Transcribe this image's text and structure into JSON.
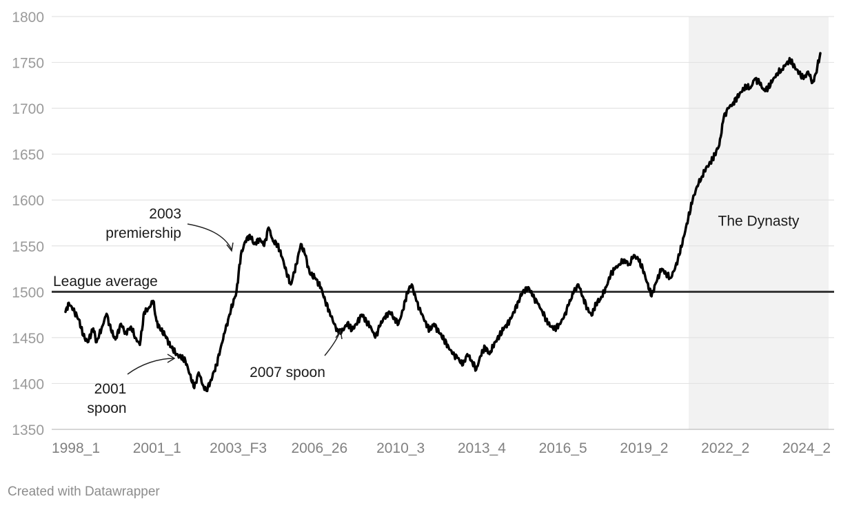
{
  "chart_data": {
    "type": "line",
    "ylim": [
      1350,
      1800
    ],
    "yticks": [
      1350,
      1400,
      1450,
      1500,
      1550,
      1600,
      1650,
      1700,
      1750,
      1800
    ],
    "xticks": [
      "1998_1",
      "2001_1",
      "2003_F3",
      "2006_26",
      "2010_3",
      "2013_4",
      "2016_5",
      "2019_2",
      "2022_2",
      "2024_2"
    ],
    "grid": true,
    "reference_line": {
      "value": 1500,
      "label": "League average"
    },
    "shaded_region": {
      "label": "The Dynasty",
      "from_index": 743,
      "to_index": 900
    },
    "annotations": [
      {
        "lines": [
          "2003",
          "premiership"
        ]
      },
      {
        "lines": [
          "2001",
          "spoon"
        ]
      },
      {
        "lines": [
          "2007 spoon"
        ]
      }
    ],
    "anchors": [
      [
        0,
        1478
      ],
      [
        3,
        1488
      ],
      [
        7,
        1480
      ],
      [
        12,
        1470
      ],
      [
        16,
        1452
      ],
      [
        20,
        1445
      ],
      [
        25,
        1460
      ],
      [
        28,
        1445
      ],
      [
        33,
        1462
      ],
      [
        37,
        1476
      ],
      [
        41,
        1458
      ],
      [
        45,
        1448
      ],
      [
        50,
        1465
      ],
      [
        54,
        1455
      ],
      [
        59,
        1462
      ],
      [
        63,
        1450
      ],
      [
        67,
        1442
      ],
      [
        71,
        1478
      ],
      [
        75,
        1482
      ],
      [
        79,
        1490
      ],
      [
        82,
        1468
      ],
      [
        85,
        1460
      ],
      [
        90,
        1452
      ],
      [
        95,
        1440
      ],
      [
        100,
        1432
      ],
      [
        104,
        1428
      ],
      [
        108,
        1425
      ],
      [
        112,
        1410
      ],
      [
        116,
        1395
      ],
      [
        120,
        1412
      ],
      [
        124,
        1398
      ],
      [
        127,
        1392
      ],
      [
        131,
        1404
      ],
      [
        136,
        1420
      ],
      [
        140,
        1440
      ],
      [
        144,
        1458
      ],
      [
        149,
        1480
      ],
      [
        154,
        1500
      ],
      [
        158,
        1540
      ],
      [
        162,
        1555
      ],
      [
        166,
        1562
      ],
      [
        170,
        1552
      ],
      [
        175,
        1558
      ],
      [
        179,
        1550
      ],
      [
        183,
        1570
      ],
      [
        187,
        1555
      ],
      [
        191,
        1552
      ],
      [
        195,
        1538
      ],
      [
        199,
        1522
      ],
      [
        203,
        1508
      ],
      [
        208,
        1530
      ],
      [
        212,
        1552
      ],
      [
        216,
        1540
      ],
      [
        220,
        1520
      ],
      [
        225,
        1515
      ],
      [
        230,
        1505
      ],
      [
        234,
        1490
      ],
      [
        238,
        1478
      ],
      [
        242,
        1465
      ],
      [
        246,
        1455
      ],
      [
        250,
        1458
      ],
      [
        254,
        1466
      ],
      [
        258,
        1458
      ],
      [
        262,
        1465
      ],
      [
        267,
        1475
      ],
      [
        271,
        1468
      ],
      [
        275,
        1462
      ],
      [
        279,
        1450
      ],
      [
        283,
        1462
      ],
      [
        287,
        1472
      ],
      [
        292,
        1478
      ],
      [
        296,
        1472
      ],
      [
        300,
        1465
      ],
      [
        304,
        1480
      ],
      [
        308,
        1500
      ],
      [
        312,
        1508
      ],
      [
        316,
        1490
      ],
      [
        320,
        1478
      ],
      [
        324,
        1468
      ],
      [
        328,
        1458
      ],
      [
        332,
        1465
      ],
      [
        337,
        1455
      ],
      [
        341,
        1448
      ],
      [
        345,
        1440
      ],
      [
        349,
        1432
      ],
      [
        353,
        1428
      ],
      [
        358,
        1420
      ],
      [
        362,
        1432
      ],
      [
        366,
        1425
      ],
      [
        370,
        1415
      ],
      [
        374,
        1430
      ],
      [
        378,
        1440
      ],
      [
        382,
        1432
      ],
      [
        387,
        1445
      ],
      [
        391,
        1452
      ],
      [
        395,
        1460
      ],
      [
        400,
        1468
      ],
      [
        404,
        1478
      ],
      [
        408,
        1490
      ],
      [
        412,
        1500
      ],
      [
        417,
        1505
      ],
      [
        421,
        1495
      ],
      [
        425,
        1488
      ],
      [
        429,
        1480
      ],
      [
        433,
        1470
      ],
      [
        437,
        1462
      ],
      [
        441,
        1460
      ],
      [
        445,
        1465
      ],
      [
        449,
        1472
      ],
      [
        453,
        1485
      ],
      [
        458,
        1500
      ],
      [
        462,
        1508
      ],
      [
        466,
        1495
      ],
      [
        470,
        1482
      ],
      [
        474,
        1474
      ],
      [
        478,
        1488
      ],
      [
        482,
        1492
      ],
      [
        487,
        1505
      ],
      [
        491,
        1518
      ],
      [
        495,
        1525
      ],
      [
        499,
        1530
      ],
      [
        503,
        1535
      ],
      [
        508,
        1530
      ],
      [
        512,
        1540
      ],
      [
        516,
        1535
      ],
      [
        520,
        1525
      ],
      [
        524,
        1510
      ],
      [
        528,
        1495
      ],
      [
        532,
        1510
      ],
      [
        537,
        1525
      ],
      [
        541,
        1520
      ],
      [
        545,
        1515
      ],
      [
        549,
        1525
      ],
      [
        553,
        1540
      ],
      [
        557,
        1560
      ],
      [
        561,
        1580
      ],
      [
        565,
        1600
      ],
      [
        569,
        1615
      ],
      [
        573,
        1625
      ],
      [
        577,
        1635
      ],
      [
        581,
        1640
      ],
      [
        585,
        1650
      ],
      [
        589,
        1660
      ],
      [
        593,
        1690
      ],
      [
        597,
        1700
      ],
      [
        601,
        1705
      ],
      [
        605,
        1712
      ],
      [
        609,
        1718
      ],
      [
        613,
        1725
      ],
      [
        617,
        1722
      ],
      [
        621,
        1732
      ],
      [
        625,
        1728
      ],
      [
        629,
        1720
      ],
      [
        633,
        1722
      ],
      [
        637,
        1730
      ],
      [
        641,
        1738
      ],
      [
        645,
        1742
      ],
      [
        649,
        1748
      ],
      [
        653,
        1752
      ],
      [
        657,
        1745
      ],
      [
        661,
        1738
      ],
      [
        665,
        1732
      ],
      [
        669,
        1740
      ],
      [
        673,
        1728
      ],
      [
        676,
        1738
      ],
      [
        680,
        1760
      ]
    ]
  },
  "credit": "Created with Datawrapper"
}
